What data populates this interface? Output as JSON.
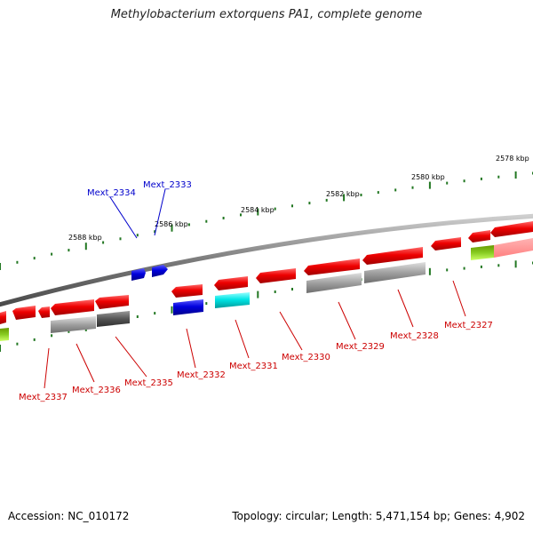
{
  "title": "Methylobacterium extorquens PA1, complete genome",
  "footer": {
    "accession": "Accession: NC_010172",
    "summary": "Topology: circular; Length: 5,471,154 bp; Genes: 4,902"
  },
  "colors": {
    "red": "#ee0000",
    "blue": "#0000dd",
    "cyan": "#00e5e5",
    "gray": "#9a9a9a",
    "darkgray": "#555555",
    "green": "#66cc00",
    "tick": "#227722",
    "blueLabel": "#0000cc",
    "redLabel": "#cc0000"
  },
  "kbp_labels": [
    "2578 kbp",
    "2580 kbp",
    "2582 kbp",
    "2584 kbp",
    "2586 kbp",
    "2588 kbp"
  ],
  "gene_labels": [
    {
      "text": "Mext_2334",
      "color": "blue"
    },
    {
      "text": "Mext_2333",
      "color": "blue"
    },
    {
      "text": "Mext_2337",
      "color": "red"
    },
    {
      "text": "Mext_2336",
      "color": "red"
    },
    {
      "text": "Mext_2335",
      "color": "red"
    },
    {
      "text": "Mext_2332",
      "color": "red"
    },
    {
      "text": "Mext_2331",
      "color": "red"
    },
    {
      "text": "Mext_2330",
      "color": "red"
    },
    {
      "text": "Mext_2329",
      "color": "red"
    },
    {
      "text": "Mext_2328",
      "color": "red"
    },
    {
      "text": "Mext_2327",
      "color": "red"
    }
  ]
}
